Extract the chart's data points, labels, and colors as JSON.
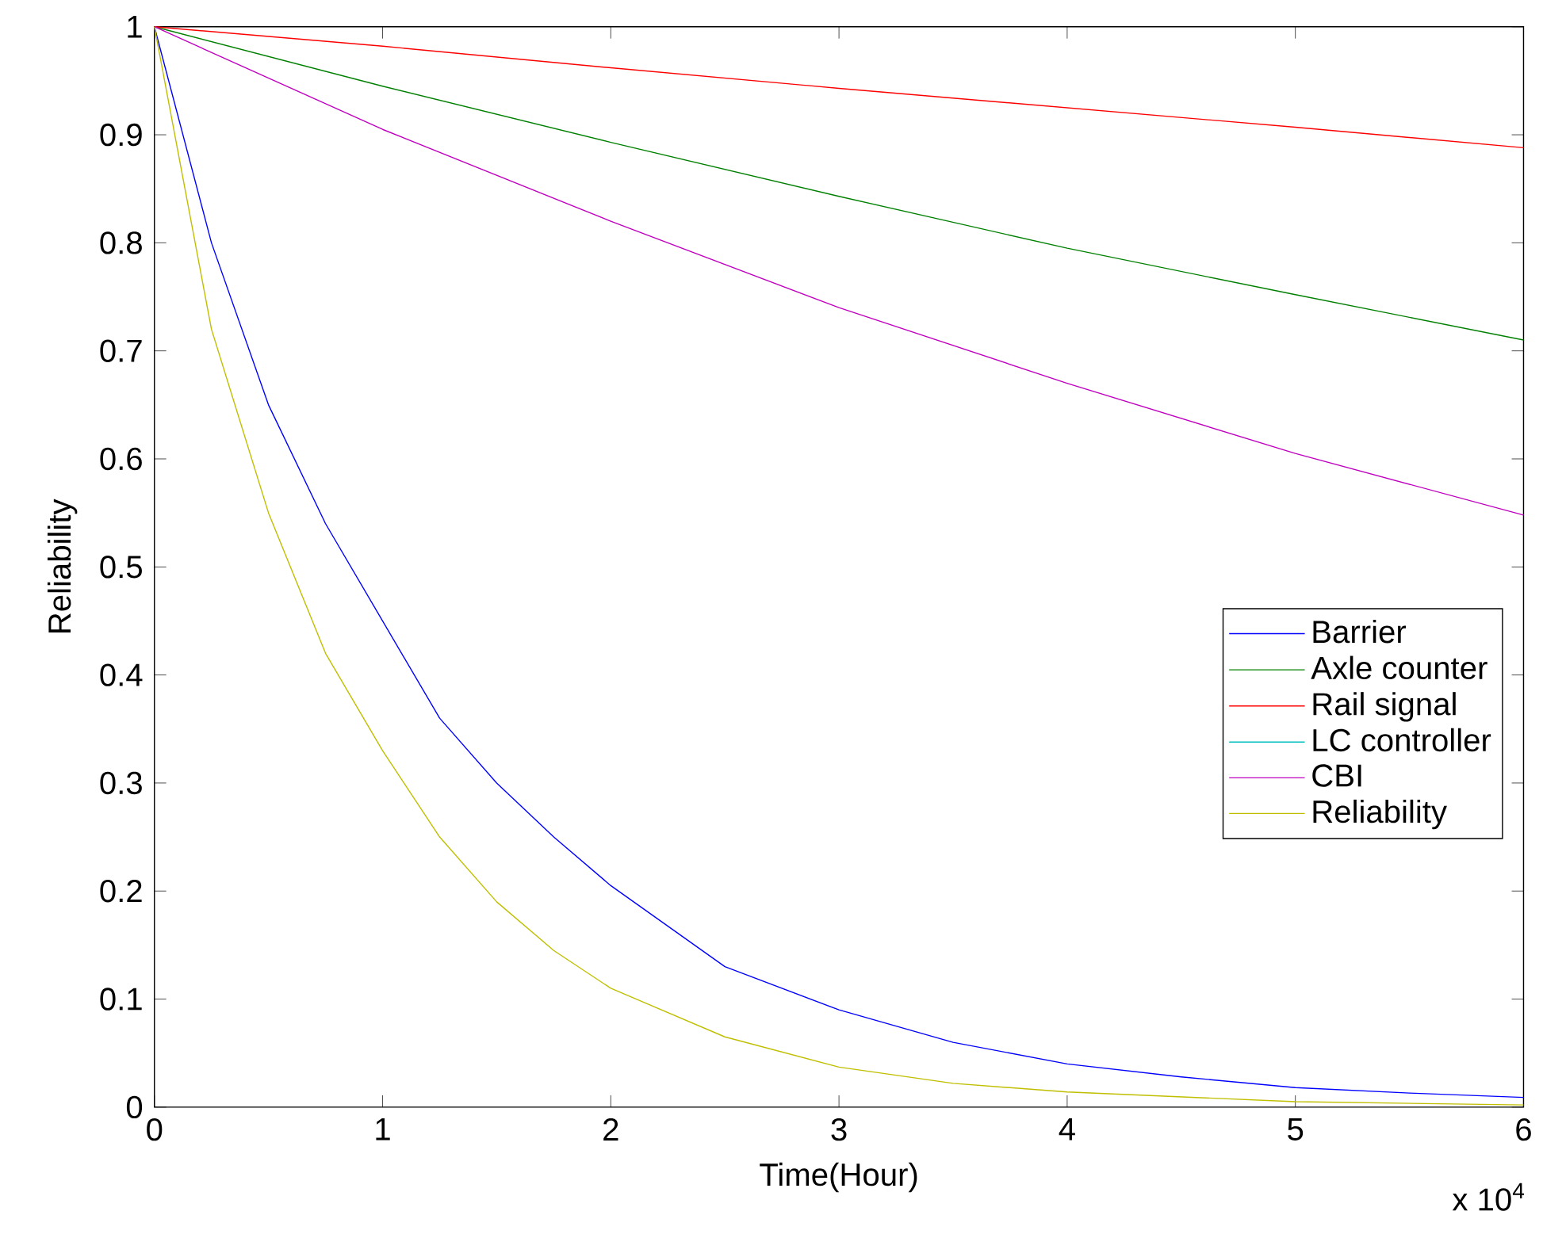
{
  "chart_data": {
    "type": "line",
    "xlabel": "Time(Hour)",
    "ylabel": "Reliability",
    "xlim": [
      0,
      6
    ],
    "ylim": [
      0,
      1
    ],
    "xticks": [
      0,
      1,
      2,
      3,
      4,
      5,
      6
    ],
    "yticks": [
      0,
      0.1,
      0.2,
      0.3,
      0.4,
      0.5,
      0.6,
      0.7,
      0.8,
      0.9,
      1
    ],
    "legend": "right",
    "grid": false,
    "annotations": [
      "x 10$^{4}$"
    ],
    "series": [
      {
        "name": "Barrier",
        "color": "#0000ff",
        "x": [
          0,
          0.25,
          0.5,
          0.75,
          1,
          1.25,
          1.5,
          1.75,
          2,
          2.5,
          3,
          3.5,
          4,
          4.5,
          5,
          5.5,
          6
        ],
        "values": [
          1,
          0.8,
          0.65,
          0.54,
          0.45,
          0.36,
          0.3,
          0.25,
          0.205,
          0.13,
          0.09,
          0.06,
          0.04,
          0.028,
          0.018,
          0.013,
          0.009
        ]
      },
      {
        "name": "Axle counter",
        "color": "#008000",
        "x": [
          0,
          1,
          2,
          3,
          4,
          5,
          6
        ],
        "values": [
          1,
          0.945,
          0.893,
          0.843,
          0.795,
          0.752,
          0.71
        ]
      },
      {
        "name": "Rail signal",
        "color": "#ff0000",
        "x": [
          0,
          1,
          2,
          3,
          4,
          5,
          6
        ],
        "values": [
          1,
          0.982,
          0.962,
          0.943,
          0.925,
          0.907,
          0.888
        ]
      },
      {
        "name": "LC controller",
        "color": "#00bfbf",
        "values": [
          null
        ]
      },
      {
        "name": "CBI",
        "color": "#bf00bf",
        "x": [
          0,
          1,
          2,
          3,
          4,
          5,
          6
        ],
        "values": [
          1,
          0.905,
          0.82,
          0.74,
          0.67,
          0.605,
          0.548
        ]
      },
      {
        "name": "Reliability",
        "color": "#bfbf00",
        "x": [
          0,
          0.25,
          0.5,
          0.75,
          1,
          1.25,
          1.5,
          1.75,
          2,
          2.5,
          3,
          3.5,
          4,
          5,
          6
        ],
        "values": [
          1,
          0.72,
          0.55,
          0.42,
          0.33,
          0.25,
          0.19,
          0.145,
          0.11,
          0.065,
          0.037,
          0.022,
          0.014,
          0.005,
          0.002
        ]
      }
    ]
  }
}
